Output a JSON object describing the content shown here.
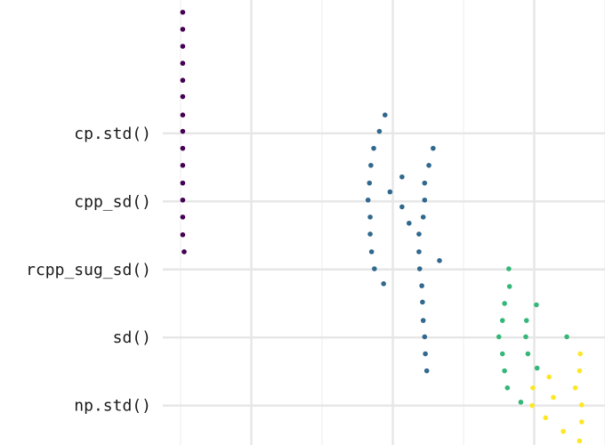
{
  "chart_data": {
    "type": "scatter",
    "xlim": [
      0,
      6
    ],
    "ylim": [
      0.42,
      6.96
    ],
    "xticks": [
      1,
      3,
      5
    ],
    "xminor": [
      0,
      2,
      4,
      6
    ],
    "yticks": [
      {
        "value": 5,
        "label": "cp.std()"
      },
      {
        "value": 4,
        "label": "cpp_sd()"
      },
      {
        "value": 3,
        "label": "rcpp_sug_sd()"
      },
      {
        "value": 2,
        "label": "sd()"
      },
      {
        "value": 1,
        "label": "np.std()"
      }
    ],
    "grid": true,
    "series": [
      {
        "color": "#440154",
        "x": [
          0.03,
          0.03,
          0.03,
          0.03,
          0.03,
          0.03,
          0.03,
          0.03,
          0.03,
          0.03,
          0.03,
          0.03,
          0.03,
          0.03,
          0.05
        ],
        "values": [
          6.78,
          6.53,
          6.28,
          6.03,
          5.78,
          5.54,
          5.27,
          5.03,
          4.78,
          4.53,
          4.27,
          4.02,
          3.77,
          3.51,
          3.26
        ]
      },
      {
        "color": "#31688e",
        "x": [
          2.89,
          2.81,
          2.73,
          3.57,
          2.69,
          3.51,
          3.13,
          2.67,
          3.45,
          2.96,
          2.65,
          3.45,
          3.13,
          3.43,
          2.68,
          3.23,
          3.37,
          2.68,
          3.66,
          2.7,
          3.37,
          2.74,
          3.38,
          2.87,
          3.41,
          3.42,
          3.43,
          3.45,
          3.46,
          3.48
        ],
        "values": [
          5.27,
          5.03,
          4.78,
          4.78,
          4.53,
          4.53,
          4.36,
          4.27,
          4.27,
          4.14,
          4.02,
          4.02,
          3.92,
          3.77,
          3.77,
          3.68,
          3.52,
          3.52,
          3.13,
          3.26,
          3.26,
          3.01,
          3.01,
          2.79,
          2.76,
          2.52,
          2.25,
          2.01,
          1.76,
          1.51
        ]
      },
      {
        "color": "#35b779",
        "x": [
          4.64,
          4.65,
          4.58,
          5.03,
          4.55,
          4.89,
          4.5,
          4.88,
          5.46,
          4.55,
          4.91,
          4.58,
          5.04,
          4.62,
          4.81
        ],
        "values": [
          3.01,
          2.75,
          2.5,
          2.48,
          2.25,
          2.25,
          2.01,
          2.01,
          2.01,
          1.76,
          1.76,
          1.51,
          1.55,
          1.26,
          1.05
        ]
      },
      {
        "color": "#fde725",
        "x": [
          5.65,
          5.64,
          5.21,
          5.58,
          4.98,
          5.27,
          5.67,
          4.97,
          5.16,
          5.67,
          5.41,
          5.64
        ],
        "values": [
          1.76,
          1.51,
          1.42,
          1.26,
          1.26,
          1.12,
          1.01,
          1.0,
          0.82,
          0.76,
          0.62,
          0.48
        ]
      }
    ]
  }
}
